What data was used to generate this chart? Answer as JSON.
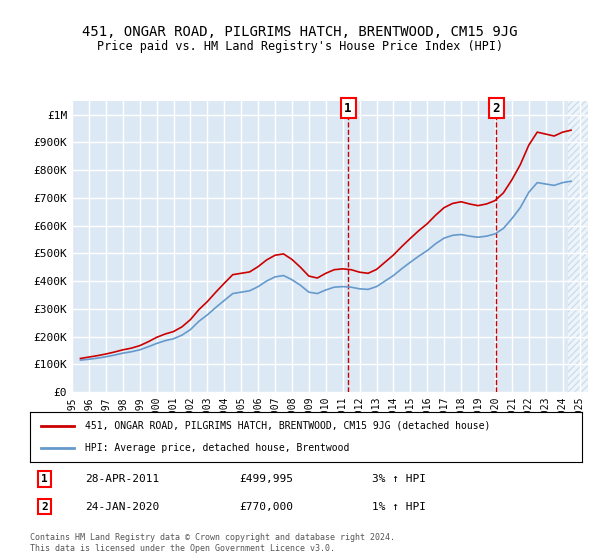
{
  "title": "451, ONGAR ROAD, PILGRIMS HATCH, BRENTWOOD, CM15 9JG",
  "subtitle": "Price paid vs. HM Land Registry's House Price Index (HPI)",
  "ylabel_ticks": [
    "£0",
    "£100K",
    "£200K",
    "£300K",
    "£400K",
    "£500K",
    "£600K",
    "£700K",
    "£800K",
    "£900K",
    "£1M"
  ],
  "ytick_values": [
    0,
    100000,
    200000,
    300000,
    400000,
    500000,
    600000,
    700000,
    800000,
    900000,
    1000000
  ],
  "ylim": [
    0,
    1050000
  ],
  "xlim_start": 1995.0,
  "xlim_end": 2025.5,
  "background_color": "#dce9f5",
  "plot_bg_color": "#dce9f5",
  "hatch_color": "#b0c8e0",
  "grid_color": "#ffffff",
  "hpi_color": "#6699cc",
  "price_color": "#cc0000",
  "vline_color": "#cc0000",
  "marker1_x": 2011.32,
  "marker1_y": 499995,
  "marker2_x": 2020.07,
  "marker2_y": 770000,
  "marker1_label": "1",
  "marker2_label": "2",
  "legend_price_label": "451, ONGAR ROAD, PILGRIMS HATCH, BRENTWOOD, CM15 9JG (detached house)",
  "legend_hpi_label": "HPI: Average price, detached house, Brentwood",
  "annotation1": [
    "1",
    "28-APR-2011",
    "£499,995",
    "3% ↑ HPI"
  ],
  "annotation2": [
    "2",
    "24-JAN-2020",
    "£770,000",
    "1% ↑ HPI"
  ],
  "footer": "Contains HM Land Registry data © Crown copyright and database right 2024.\nThis data is licensed under the Open Government Licence v3.0.",
  "hpi_data": {
    "years": [
      1995.5,
      1996.0,
      1996.5,
      1997.0,
      1997.5,
      1998.0,
      1998.5,
      1999.0,
      1999.5,
      2000.0,
      2000.5,
      2001.0,
      2001.5,
      2002.0,
      2002.5,
      2003.0,
      2003.5,
      2004.0,
      2004.5,
      2005.0,
      2005.5,
      2006.0,
      2006.5,
      2007.0,
      2007.5,
      2008.0,
      2008.5,
      2009.0,
      2009.5,
      2010.0,
      2010.5,
      2011.0,
      2011.5,
      2012.0,
      2012.5,
      2013.0,
      2013.5,
      2014.0,
      2014.5,
      2015.0,
      2015.5,
      2016.0,
      2016.5,
      2017.0,
      2017.5,
      2018.0,
      2018.5,
      2019.0,
      2019.5,
      2020.0,
      2020.5,
      2021.0,
      2021.5,
      2022.0,
      2022.5,
      2023.0,
      2023.5,
      2024.0,
      2024.5
    ],
    "values": [
      115000,
      118000,
      122000,
      127000,
      133000,
      140000,
      145000,
      152000,
      163000,
      175000,
      185000,
      192000,
      205000,
      225000,
      255000,
      278000,
      305000,
      330000,
      355000,
      360000,
      365000,
      380000,
      400000,
      415000,
      420000,
      405000,
      385000,
      360000,
      355000,
      368000,
      378000,
      380000,
      378000,
      372000,
      370000,
      380000,
      400000,
      420000,
      445000,
      468000,
      490000,
      510000,
      535000,
      555000,
      565000,
      568000,
      562000,
      558000,
      562000,
      570000,
      590000,
      625000,
      665000,
      720000,
      755000,
      750000,
      745000,
      755000,
      760000
    ],
    "price_offset": [
      6000,
      8000,
      9000,
      10000,
      11000,
      12000,
      13000,
      15000,
      18000,
      22000,
      24000,
      26000,
      30000,
      36000,
      42000,
      48000,
      55000,
      62000,
      68000,
      68000,
      68000,
      72000,
      76000,
      78000,
      78000,
      73000,
      65000,
      58000,
      56000,
      60000,
      63000,
      64000,
      63000,
      60000,
      58000,
      62000,
      68000,
      74000,
      80000,
      86000,
      92000,
      97000,
      103000,
      110000,
      115000,
      118000,
      116000,
      114000,
      116000,
      120000,
      128000,
      140000,
      155000,
      170000,
      182000,
      180000,
      178000,
      182000,
      184000
    ]
  }
}
